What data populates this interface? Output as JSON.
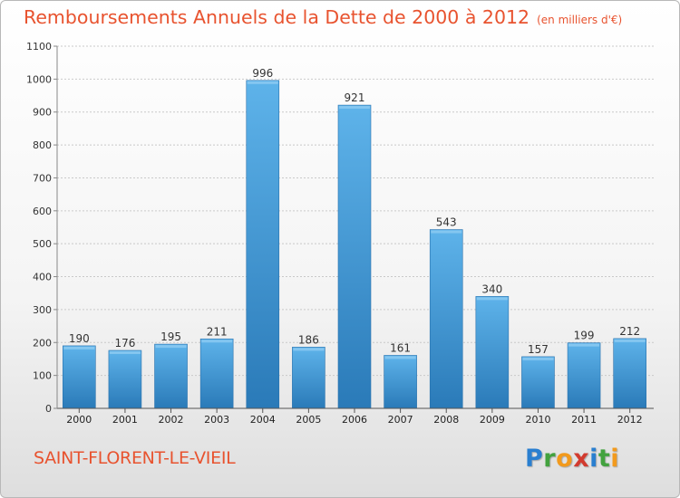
{
  "title": "Remboursements Annuels de la Dette de 2000 à 2012",
  "unit": "(en milliers d'€)",
  "place": "SAINT-FLORENT-LE-VIEIL",
  "logo": {
    "letters": [
      "P",
      "r",
      "o",
      "x",
      "i",
      "t",
      "i"
    ],
    "colors": [
      "#2a7fd0",
      "#43a23f",
      "#f29a1d",
      "#d23b2f",
      "#2a7fd0",
      "#43a23f",
      "#f29a1d"
    ]
  },
  "colors": {
    "accent": "#e8532f",
    "bar_top": "#5eb3ea",
    "bar_bottom": "#2a7ab8"
  },
  "chart_data": {
    "type": "bar",
    "categories": [
      "2000",
      "2001",
      "2002",
      "2003",
      "2004",
      "2005",
      "2006",
      "2007",
      "2008",
      "2009",
      "2010",
      "2011",
      "2012"
    ],
    "values": [
      190,
      176,
      195,
      211,
      996,
      186,
      921,
      161,
      543,
      340,
      157,
      199,
      212
    ],
    "ylim": [
      0,
      1100
    ],
    "yticks": [
      0,
      100,
      200,
      300,
      400,
      500,
      600,
      700,
      800,
      900,
      1000,
      1100
    ],
    "grid": true,
    "xlabel": "",
    "ylabel": ""
  }
}
